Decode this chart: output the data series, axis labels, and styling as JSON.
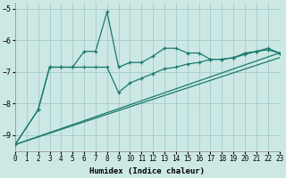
{
  "xlabel": "Humidex (Indice chaleur)",
  "bg_color": "#cce8e5",
  "grid_color": "#aacfcc",
  "line_color": "#1a7a6e",
  "xlim": [
    0,
    23
  ],
  "ylim": [
    -9.5,
    -4.8
  ],
  "yticks": [
    -9,
    -8,
    -7,
    -6,
    -5
  ],
  "xticks": [
    0,
    1,
    2,
    3,
    4,
    5,
    6,
    7,
    8,
    9,
    10,
    11,
    12,
    13,
    14,
    15,
    16,
    17,
    18,
    19,
    20,
    21,
    22,
    23
  ],
  "series1_x": [
    0,
    2,
    3,
    4,
    5,
    6,
    7,
    8,
    9,
    10,
    11,
    12,
    13,
    14,
    15,
    16,
    17,
    18,
    19,
    20,
    21,
    22,
    23
  ],
  "series1_y": [
    -9.3,
    -8.2,
    -6.85,
    -6.85,
    -6.85,
    -6.35,
    -6.35,
    -5.1,
    -6.85,
    -6.7,
    -6.7,
    -6.5,
    -6.25,
    -6.25,
    -6.4,
    -6.4,
    -6.6,
    -6.6,
    -6.55,
    -6.4,
    -6.35,
    -6.3,
    -6.4
  ],
  "series2_x": [
    0,
    2,
    3,
    4,
    5,
    6,
    7,
    8,
    9,
    10,
    11,
    12,
    13,
    14,
    15,
    16,
    17,
    18,
    19,
    20,
    21,
    22,
    23
  ],
  "series2_y": [
    -9.3,
    -8.2,
    -6.85,
    -6.85,
    -6.85,
    -6.85,
    -6.85,
    -6.85,
    -7.65,
    -7.35,
    -7.2,
    -7.05,
    -6.9,
    -6.85,
    -6.75,
    -6.7,
    -6.6,
    -6.6,
    -6.55,
    -6.45,
    -6.35,
    -6.25,
    -6.4
  ],
  "trend1_x": [
    0,
    23
  ],
  "trend1_y": [
    -9.3,
    -6.55
  ],
  "trend2_x": [
    0,
    23
  ],
  "trend2_y": [
    -9.3,
    -6.4
  ],
  "marker_size": 3.5,
  "linewidth": 0.9,
  "xlabel_fontsize": 6.5,
  "tick_fontsize": 5.5
}
